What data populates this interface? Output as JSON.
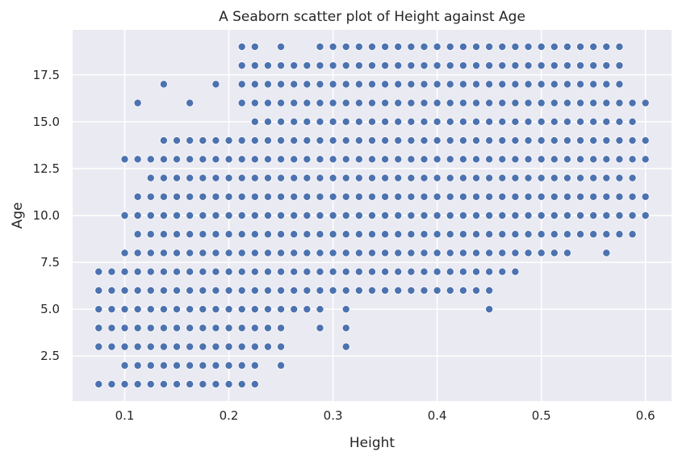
{
  "chart_data": {
    "type": "scatter",
    "title": "A Seaborn scatter plot of Height against Age",
    "xlabel": "Height",
    "ylabel": "Age",
    "xlim": [
      0.05,
      0.625
    ],
    "ylim": [
      0.1,
      19.9
    ],
    "x_ticks": [
      "0.1",
      "0.2",
      "0.3",
      "0.4",
      "0.5",
      "0.6"
    ],
    "y_ticks": [
      "2.5",
      "5.0",
      "7.5",
      "10.0",
      "12.5",
      "15.0",
      "17.5"
    ],
    "grid": true,
    "point_color": "#4c72b0",
    "background_color": "#eaeaf2",
    "grid_color": "#ffffff",
    "age_bands": [
      {
        "age": 1,
        "min": 0.075,
        "max": 0.225
      },
      {
        "age": 2,
        "min": 0.1,
        "max": 0.225,
        "extra": [
          0.25
        ]
      },
      {
        "age": 3,
        "min": 0.075,
        "max": 0.25,
        "extra": [
          0.3125
        ]
      },
      {
        "age": 4,
        "min": 0.075,
        "max": 0.25,
        "extra": [
          0.2875,
          0.3125
        ]
      },
      {
        "age": 5,
        "min": 0.075,
        "max": 0.2875,
        "extra": [
          0.3125,
          0.45
        ]
      },
      {
        "age": 6,
        "min": 0.075,
        "max": 0.45
      },
      {
        "age": 7,
        "min": 0.075,
        "max": 0.475
      },
      {
        "age": 8,
        "min": 0.1,
        "max": 0.525,
        "extra": [
          0.5625
        ]
      },
      {
        "age": 9,
        "min": 0.1125,
        "max": 0.5875
      },
      {
        "age": 10,
        "min": 0.1,
        "max": 0.6
      },
      {
        "age": 11,
        "min": 0.1125,
        "max": 0.6
      },
      {
        "age": 12,
        "min": 0.125,
        "max": 0.5875
      },
      {
        "age": 13,
        "min": 0.1,
        "max": 0.6
      },
      {
        "age": 14,
        "min": 0.1375,
        "max": 0.6
      },
      {
        "age": 15,
        "min": 0.225,
        "max": 0.5875
      },
      {
        "age": 16,
        "min": 0.2125,
        "max": 0.6,
        "extra": [
          0.1125,
          0.1625
        ]
      },
      {
        "age": 17,
        "min": 0.2125,
        "max": 0.575,
        "extra": [
          0.1375,
          0.1875
        ]
      },
      {
        "age": 18,
        "min": 0.2125,
        "max": 0.575
      },
      {
        "age": 19,
        "min": 0.2875,
        "max": 0.575,
        "extra": [
          0.2125,
          0.225,
          0.25
        ]
      }
    ],
    "x_step": 0.0125
  }
}
